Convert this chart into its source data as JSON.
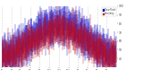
{
  "bg_color": "#ffffff",
  "grid_color": "#b0b0b0",
  "bar_color_blue": "#0000cc",
  "bar_color_red": "#cc0000",
  "ylim": [
    30,
    100
  ],
  "yticks": [
    40,
    50,
    60,
    70,
    80,
    90,
    100
  ],
  "n_days": 365,
  "seed": 42,
  "legend_blue_label": "Dew Point",
  "legend_red_label": "Humidity",
  "month_starts": [
    0,
    31,
    59,
    90,
    120,
    151,
    181,
    212,
    243,
    273,
    304,
    334
  ],
  "month_labels": [
    "5/1",
    "6/1",
    "7/1",
    "8/1",
    "9/1",
    "10/1",
    "11/1",
    "12/1",
    "1/1",
    "2/1",
    "3/1",
    "4/1"
  ]
}
